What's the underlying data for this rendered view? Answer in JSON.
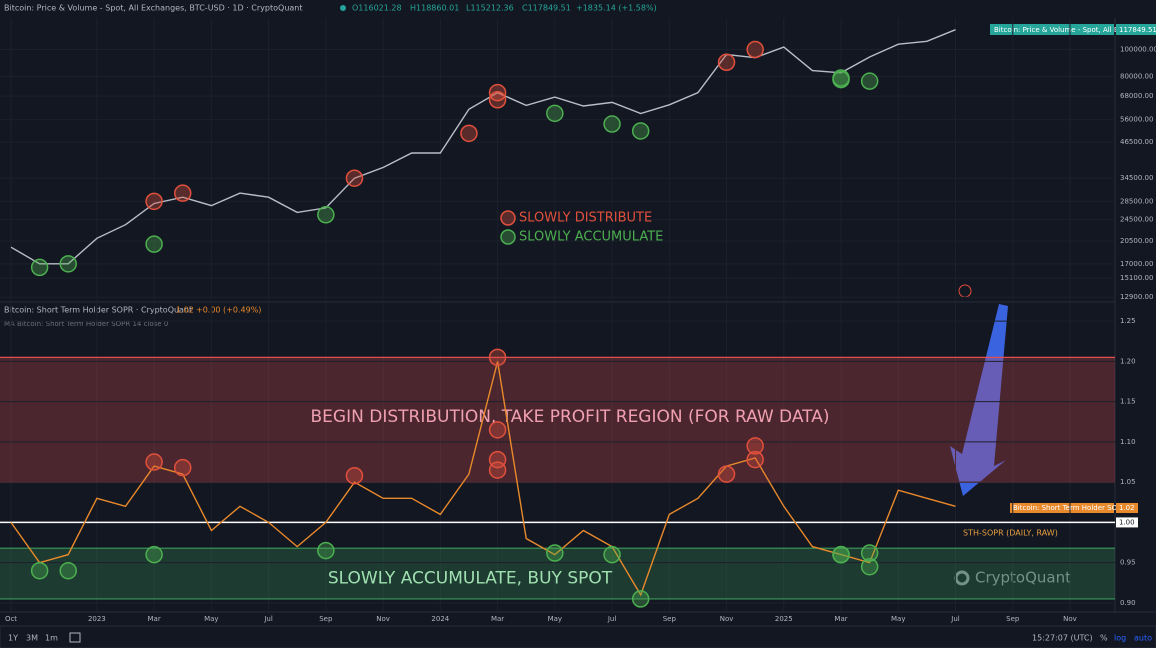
{
  "header": {
    "title": "Bitcoin: Price & Volume - Spot, All Exchanges, BTC-USD · 1D · CryptoQuant",
    "open": "O116021.28",
    "high": "H118860.01",
    "low": "L115212.36",
    "close": "C117849.51",
    "change": "+1835.14 (+1.58%)"
  },
  "price_tag": {
    "name": "Bitcoin: Price & Volume - Spot, All E...",
    "value": "117849.51"
  },
  "sopr_header": {
    "title": "Bitcoin: Short Term Holder SOPR · CryptoQuant",
    "value": "1.02",
    "change": "+0.00 (+0.49%)",
    "ma": "MA Bitcoin: Short Term Holder SOPR 14 close 0"
  },
  "sopr_tag": {
    "name": "Bitcoin: Short Term Holder SOPR",
    "value": "1.02"
  },
  "watermark": "CryptoQuant",
  "toolbar": {
    "ranges": [
      "1Y",
      "3M",
      "1m"
    ],
    "time": "15:27:07 (UTC)",
    "percent": "%",
    "log": "log",
    "auto": "auto"
  },
  "time_axis": {
    "xlim": [
      "2022-10",
      "2025-11"
    ],
    "xticks": [
      {
        "value": "2022-10",
        "label": "Oct"
      },
      {
        "value": "2023-01",
        "label": "2023"
      },
      {
        "value": "2023-03",
        "label": "Mar"
      },
      {
        "value": "2023-05",
        "label": "May"
      },
      {
        "value": "2023-07",
        "label": "Jul"
      },
      {
        "value": "2023-09",
        "label": "Sep"
      },
      {
        "value": "2023-11",
        "label": "Nov"
      },
      {
        "value": "2024-01",
        "label": "2024"
      },
      {
        "value": "2024-03",
        "label": "Mar"
      },
      {
        "value": "2024-05",
        "label": "May"
      },
      {
        "value": "2024-07",
        "label": "Jul"
      },
      {
        "value": "2024-09",
        "label": "Sep"
      },
      {
        "value": "2024-11",
        "label": "Nov"
      },
      {
        "value": "2025-01",
        "label": "2025"
      },
      {
        "value": "2025-03",
        "label": "Mar"
      },
      {
        "value": "2025-05",
        "label": "May"
      },
      {
        "value": "2025-07",
        "label": "Jul"
      },
      {
        "value": "2025-09",
        "label": "Sep"
      },
      {
        "value": "2025-11",
        "label": "Nov"
      }
    ]
  },
  "chart_data": [
    {
      "type": "line",
      "log_scale": true,
      "ylim": [
        12500,
        118500
      ],
      "yticks": [
        {
          "value": 100000,
          "label": "100000.00"
        },
        {
          "value": 80000,
          "label": "80000.00"
        },
        {
          "value": 68000,
          "label": "68000.00"
        },
        {
          "value": 56000,
          "label": "56000.00"
        },
        {
          "value": 46500,
          "label": "46500.00"
        },
        {
          "value": 34500,
          "label": "34500.00"
        },
        {
          "value": 28500,
          "label": "28500.00"
        },
        {
          "value": 24500,
          "label": "24500.00"
        },
        {
          "value": 20500,
          "label": "20500.00"
        },
        {
          "value": 17000,
          "label": "17000.00"
        },
        {
          "value": 15100,
          "label": "15100.00"
        },
        {
          "value": 12900,
          "label": "12900.00"
        }
      ],
      "series": [
        {
          "color": "#b8bec8",
          "x": [
            "2022-10",
            "2022-11",
            "2022-12",
            "2023-01",
            "2023-02",
            "2023-03",
            "2023-04",
            "2023-05",
            "2023-06",
            "2023-07",
            "2023-08",
            "2023-09",
            "2023-10",
            "2023-11",
            "2023-12",
            "2024-01",
            "2024-02",
            "2024-03",
            "2024-04",
            "2024-05",
            "2024-06",
            "2024-07",
            "2024-08",
            "2024-09",
            "2024-10",
            "2024-11",
            "2024-12",
            "2025-01",
            "2025-02",
            "2025-03",
            "2025-04",
            "2025-05",
            "2025-06",
            "2025-07"
          ],
          "values": [
            19500,
            17000,
            17000,
            21000,
            23500,
            28000,
            29500,
            27500,
            30500,
            29500,
            26000,
            27000,
            34500,
            37700,
            42500,
            42500,
            61000,
            70000,
            63000,
            67500,
            62700,
            64600,
            58900,
            63300,
            70000,
            96000,
            93500,
            102000,
            84000,
            82500,
            94000,
            104500,
            107000,
            117849.51
          ]
        },
        {
          "type": "markers",
          "name": "SLOWLY DISTRIBUTE",
          "color": "#e0503c",
          "x": [
            "2023-03",
            "2023-04",
            "2023-10",
            "2024-02",
            "2024-03",
            "2024-03",
            "2024-11",
            "2024-12"
          ],
          "values": [
            28500,
            30500,
            34500,
            50000,
            66000,
            70000,
            90000,
            100000
          ]
        },
        {
          "type": "markers",
          "name": "SLOWLY ACCUMULATE",
          "color": "#4caf50",
          "x": [
            "2022-11",
            "2022-12",
            "2023-03",
            "2023-09",
            "2024-05",
            "2024-07",
            "2024-08",
            "2025-03",
            "2025-03",
            "2025-04"
          ],
          "values": [
            16500,
            17000,
            20000,
            25500,
            59000,
            54000,
            51000,
            79000,
            78000,
            77000
          ]
        }
      ]
    },
    {
      "type": "line",
      "log_scale": false,
      "ylim": [
        0.89,
        1.27
      ],
      "yticks": [
        1.25,
        {
          "value": 1.2,
          "label": "1.20"
        },
        1.15,
        {
          "value": 1.1,
          "label": "1.10"
        },
        1.05,
        {
          "value": 1,
          "label": "1.00"
        },
        0.95,
        {
          "value": 0.9,
          "label": "0.90"
        }
      ],
      "bands": [
        {
          "label": "BEGIN DISTRIBUTION, TAKE PROFIT REGION (FOR RAW DATA)",
          "from": 1.05,
          "to": 1.205,
          "color": "#e05050"
        },
        {
          "label": "SLOWLY ACCUMULATE, BUY SPOT",
          "from": 0.905,
          "to": 0.968,
          "color": "#3a9a5a"
        }
      ],
      "baseline": {
        "value": 1,
        "label": "1.00"
      },
      "annotation": "STH-SOPR (DAILY, RAW)",
      "series": [
        {
          "color": "#e8892b",
          "x": [
            "2022-10",
            "2022-11",
            "2022-12",
            "2023-01",
            "2023-02",
            "2023-03",
            "2023-04",
            "2023-05",
            "2023-06",
            "2023-07",
            "2023-08",
            "2023-09",
            "2023-10",
            "2023-11",
            "2023-12",
            "2024-01",
            "2024-02",
            "2024-03",
            "2024-04",
            "2024-05",
            "2024-06",
            "2024-07",
            "2024-08",
            "2024-09",
            "2024-10",
            "2024-11",
            "2024-12",
            "2025-01",
            "2025-02",
            "2025-03",
            "2025-04",
            "2025-05",
            "2025-06",
            "2025-07"
          ],
          "values": [
            1.0,
            0.95,
            0.96,
            1.03,
            1.02,
            1.07,
            1.06,
            0.99,
            1.02,
            1.0,
            0.97,
            1.0,
            1.05,
            1.03,
            1.03,
            1.01,
            1.06,
            1.2,
            0.98,
            0.96,
            0.99,
            0.97,
            0.91,
            1.01,
            1.03,
            1.07,
            1.08,
            1.02,
            0.97,
            0.96,
            0.95,
            1.04,
            1.03,
            1.02
          ]
        },
        {
          "type": "markers",
          "color": "#e0503c",
          "x": [
            "2023-03",
            "2023-04",
            "2023-10",
            "2024-03",
            "2024-03",
            "2024-03",
            "2024-03",
            "2024-11",
            "2024-12",
            "2024-12"
          ],
          "values": [
            1.075,
            1.068,
            1.058,
            1.115,
            1.065,
            1.078,
            1.205,
            1.06,
            1.095,
            1.078
          ]
        },
        {
          "type": "markers",
          "color": "#4caf50",
          "x": [
            "2022-11",
            "2022-12",
            "2023-03",
            "2023-09",
            "2024-05",
            "2024-07",
            "2024-08",
            "2025-03",
            "2025-03",
            "2025-04",
            "2025-04"
          ],
          "values": [
            0.94,
            0.94,
            0.96,
            0.965,
            0.962,
            0.96,
            0.905,
            0.96,
            0.96,
            0.962,
            0.945
          ]
        }
      ]
    }
  ]
}
